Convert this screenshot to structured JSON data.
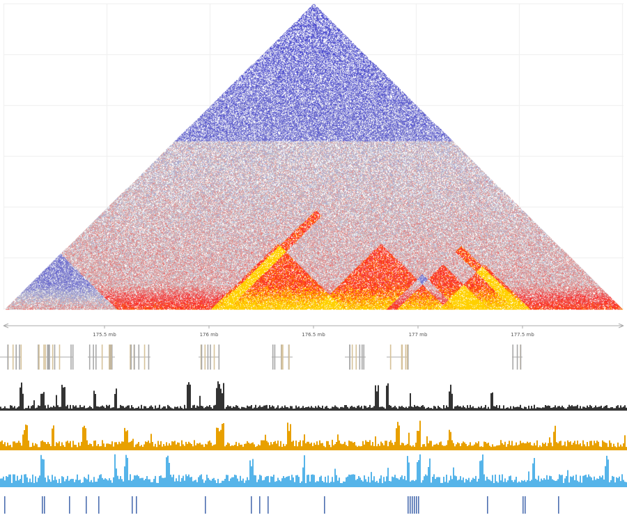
{
  "chart_data": {
    "type": "heatmap",
    "title": "",
    "description_kind": "Hi-C contact triangle with genomic signal tracks",
    "colors": {
      "low": "#1010d0",
      "mid": "#d0d0d0",
      "high": "#ff1a1a",
      "max": "#ffd000"
    },
    "hotspots": [
      {
        "region_mb": [
          176.05,
          176.6
        ],
        "level": 1.0
      },
      {
        "region_mb": [
          176.55,
          177.1
        ],
        "level": 0.9
      },
      {
        "region_mb": [
          176.95,
          177.3
        ],
        "level": 0.85
      },
      {
        "region_mb": [
          177.15,
          177.5
        ],
        "level": 0.95
      },
      {
        "region_mb": [
          175.0,
          175.5
        ],
        "level": -0.9
      },
      {
        "region_mb": [
          176.9,
          177.15
        ],
        "level": -0.95
      }
    ],
    "axis": {
      "range_mb": [
        175.0,
        178.0
      ],
      "ticks": [
        "175.5 mb",
        "176 mb",
        "176.5 mb",
        "177 mb",
        "177.5 mb"
      ],
      "tick_values": [
        175.5,
        176.0,
        176.5,
        177.0,
        177.5
      ]
    },
    "gene_track": {
      "color": "#a8a8a8",
      "exon_color": "#d6c29a",
      "clusters_mb": [
        [
          175.0,
          175.1
        ],
        [
          175.18,
          175.35
        ],
        [
          175.42,
          175.55
        ],
        [
          175.62,
          175.72
        ],
        [
          175.95,
          176.05
        ],
        [
          176.3,
          176.4
        ],
        [
          176.65,
          176.75
        ],
        [
          176.85,
          176.95
        ],
        [
          177.45,
          177.5
        ]
      ]
    },
    "signal_tracks": [
      {
        "color": "#333333",
        "baseline": 0.15,
        "peaks_mb": [
          175.1,
          175.2,
          175.3,
          175.45,
          175.55,
          175.9,
          176.04,
          176.06,
          176.8,
          176.85,
          177.15,
          177.35
        ]
      },
      {
        "color": "#e8a000",
        "baseline": 0.25,
        "peaks_mb": [
          175.12,
          175.25,
          175.4,
          175.6,
          176.04,
          176.06,
          176.38,
          176.9,
          177.0,
          177.15,
          177.65
        ]
      },
      {
        "color": "#56b4e9",
        "baseline": 0.3,
        "peaks_mb": [
          175.2,
          175.55,
          175.6,
          175.8,
          176.2,
          176.45,
          176.95,
          177.0,
          177.05,
          177.3,
          177.55,
          177.9
        ]
      }
    ],
    "peak_track": {
      "color": "#4d6fb0",
      "positions_mb": [
        175.02,
        175.2,
        175.21,
        175.33,
        175.41,
        175.47,
        175.63,
        175.65,
        175.98,
        176.2,
        176.24,
        176.28,
        176.55,
        176.95,
        176.96,
        176.97,
        176.98,
        176.99,
        177.0,
        177.33,
        177.5,
        177.51,
        177.67
      ]
    }
  }
}
